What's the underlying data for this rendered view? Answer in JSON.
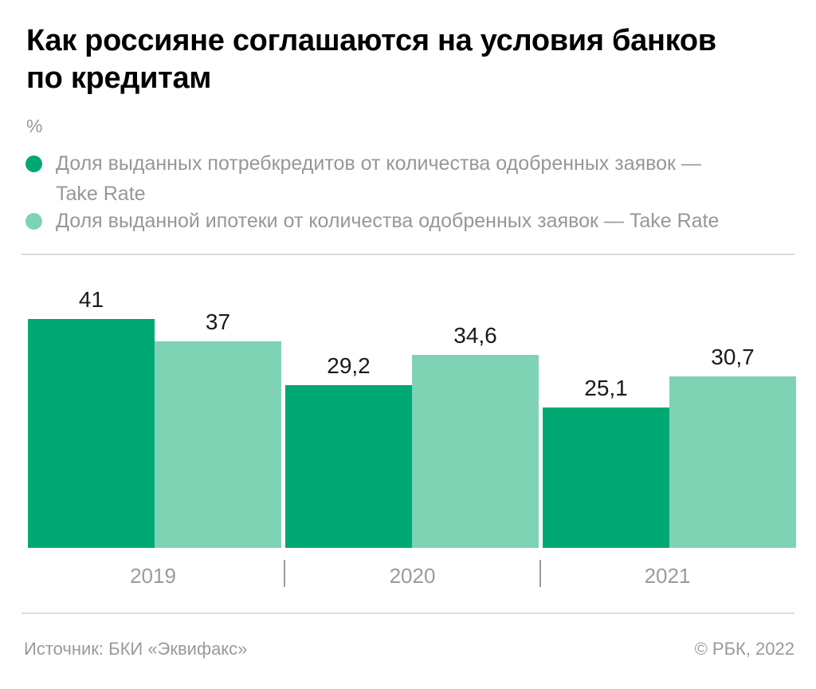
{
  "header": {
    "title_lines": [
      "Как россияне соглашаются на условия банков",
      "по кредитам"
    ]
  },
  "unit_label": "%",
  "legend": {
    "items": [
      {
        "color": "#00a873",
        "lines": [
          "Доля выданных потребкредитов от количества одобренных заявок —",
          "Take Rate"
        ]
      },
      {
        "color": "#7fd3b5",
        "lines": [
          "Доля выданной ипотеки от количества одобренных заявок — Take Rate"
        ]
      }
    ]
  },
  "chart_data": {
    "type": "bar",
    "title": "Как россияне соглашаются на условия банков по кредитам",
    "unit": "%",
    "categories": [
      "2019",
      "2020",
      "2021"
    ],
    "series": [
      {
        "name": "Доля выданных потребкредитов от количества одобренных заявок — Take Rate",
        "color": "#00a873",
        "values": [
          41,
          29.2,
          25.1
        ],
        "labels": [
          "41",
          "29,2",
          "25,1"
        ]
      },
      {
        "name": "Доля выданной ипотеки от количества одобренных заявок — Take Rate",
        "color": "#7fd3b5",
        "values": [
          37,
          34.6,
          30.7
        ],
        "labels": [
          "37",
          "34,6",
          "30,7"
        ]
      }
    ],
    "ylim": [
      0,
      45
    ],
    "grid": false,
    "legend_position": "top",
    "value_labels_shown": true
  },
  "footer": {
    "source": "Источник: БКИ «Эквифакс»",
    "credit": "© РБК, 2022"
  },
  "colors": {
    "accent_dark": "#00a873",
    "accent_light": "#7fd3b5",
    "text_muted": "#97979b",
    "divider": "#dcdcdc",
    "title": "#000000",
    "value_label": "#1a1a1a"
  }
}
